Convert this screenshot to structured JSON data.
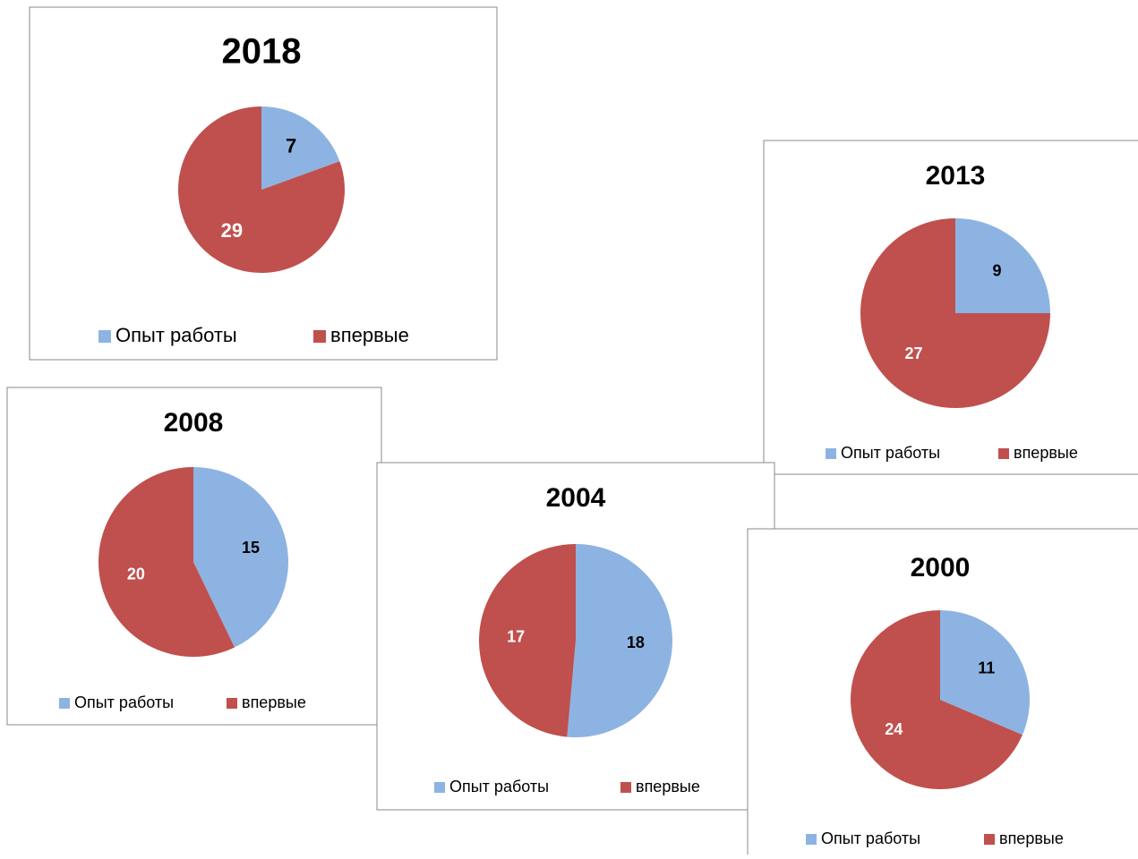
{
  "chart_data": [
    {
      "type": "pie",
      "title": "2018",
      "categories": [
        "Опыт работы",
        "впервые"
      ],
      "values": [
        7,
        29
      ],
      "colors": [
        "#8db3e2",
        "#c0504d"
      ]
    },
    {
      "type": "pie",
      "title": "2013",
      "categories": [
        "Опыт работы",
        "впервые"
      ],
      "values": [
        9,
        27
      ],
      "colors": [
        "#8db3e2",
        "#c0504d"
      ]
    },
    {
      "type": "pie",
      "title": "2008",
      "categories": [
        "Опыт работы",
        "впервые"
      ],
      "values": [
        15,
        20
      ],
      "colors": [
        "#8db3e2",
        "#c0504d"
      ]
    },
    {
      "type": "pie",
      "title": "2004",
      "categories": [
        "Опыт работы",
        "впервые"
      ],
      "values": [
        18,
        17
      ],
      "colors": [
        "#8db3e2",
        "#c0504d"
      ]
    },
    {
      "type": "pie",
      "title": "2000",
      "categories": [
        "Опыт работы",
        "впервые"
      ],
      "values": [
        11,
        24
      ],
      "colors": [
        "#8db3e2",
        "#c0504d"
      ]
    }
  ]
}
